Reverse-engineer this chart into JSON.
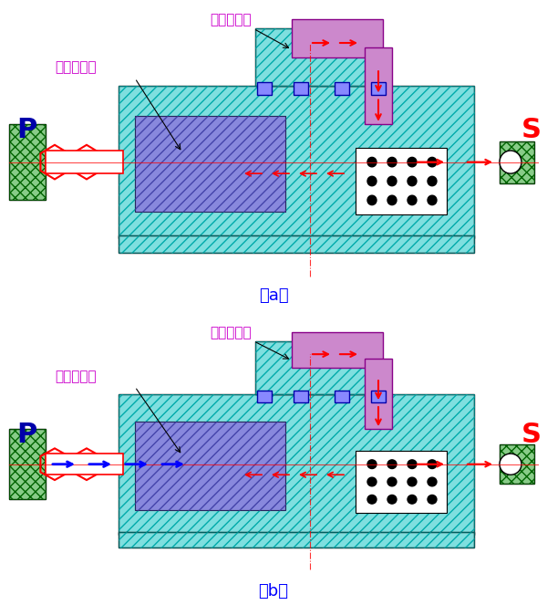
{
  "title": "",
  "background_color": "#ffffff",
  "cyan_fill": "#7FDFDF",
  "cyan_hatch_color": "#00AAAA",
  "purple_fill": "#CC88CC",
  "blue_fill": "#8888DD",
  "green_fill": "#88CC88",
  "red_color": "#FF0000",
  "blue_color": "#0000FF",
  "dark_blue_color": "#0000AA",
  "label_a": "（a）",
  "label_b": "（b）",
  "label_P": "P",
  "label_S": "S",
  "label_odd": "奇数档气管",
  "label_even": "偶数档气管",
  "figsize": [
    6.0,
    6.63
  ],
  "dpi": 100
}
